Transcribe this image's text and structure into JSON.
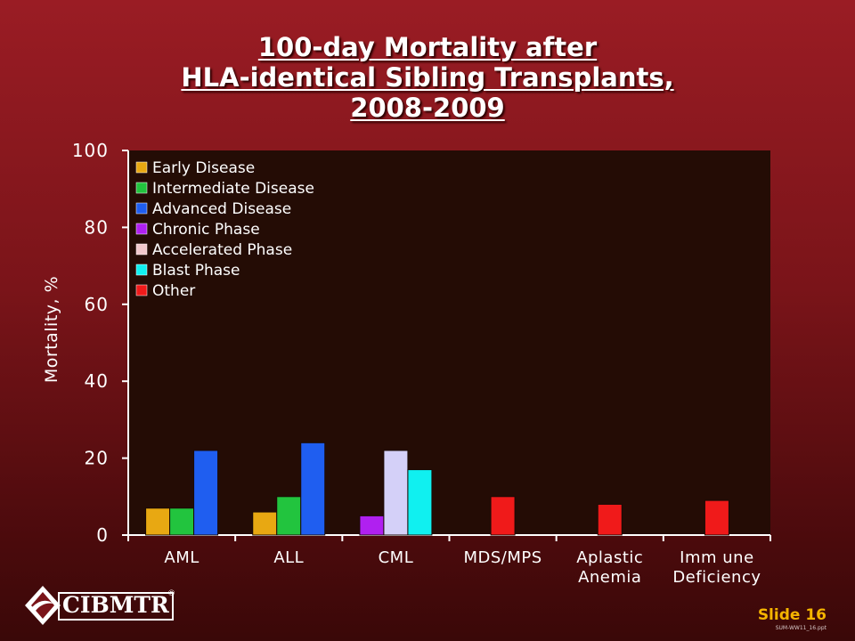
{
  "title_lines": [
    "100-day Mortality after",
    "HLA-identical Sibling Transplants,",
    "2008-2009"
  ],
  "footer": {
    "logo_text": "CIBMTR",
    "logo_mark": "®",
    "slide_label": "Slide 16",
    "code": "SUM-WW11_16.ppt"
  },
  "chart_data": {
    "type": "bar",
    "title": "100-day Mortality after HLA-identical Sibling Transplants, 2008-2009",
    "ylabel": "Mortality, %",
    "xlabel": "",
    "ylim": [
      0,
      100
    ],
    "yticks": [
      0,
      20,
      40,
      60,
      80,
      100
    ],
    "grid": false,
    "legend_position": "top-left",
    "categories": [
      {
        "label": "AML",
        "lines": [
          "AML"
        ]
      },
      {
        "label": "ALL",
        "lines": [
          "ALL"
        ]
      },
      {
        "label": "CML",
        "lines": [
          "CML"
        ]
      },
      {
        "label": "MDS/MPS",
        "lines": [
          "MDS/MPS"
        ]
      },
      {
        "label": "Aplastic Anemia",
        "lines": [
          "Aplastic",
          "Anemia"
        ]
      },
      {
        "label": "Immune Deficiency",
        "lines": [
          "Imm une",
          "Deficiency"
        ]
      }
    ],
    "series": [
      {
        "name": "Early Disease",
        "color": "#e8a812",
        "values": [
          7,
          6,
          null,
          null,
          null,
          null
        ]
      },
      {
        "name": "Intermediate Disease",
        "color": "#22c43e",
        "values": [
          7,
          10,
          null,
          null,
          null,
          null
        ]
      },
      {
        "name": "Advanced Disease",
        "color": "#1f5ef0",
        "values": [
          22,
          24,
          null,
          null,
          null,
          null
        ]
      },
      {
        "name": "Chronic Phase",
        "color": "#b020f0",
        "values": [
          null,
          null,
          5,
          null,
          null,
          null
        ]
      },
      {
        "name": "Accelerated Phase",
        "color": "#d4d0f8",
        "legend_color": "#f2c8cc",
        "values": [
          null,
          null,
          22,
          null,
          null,
          null
        ]
      },
      {
        "name": "Blast Phase",
        "color": "#10f0f0",
        "values": [
          null,
          null,
          17,
          null,
          null,
          null
        ]
      },
      {
        "name": "Other",
        "color": "#f01a1a",
        "values": [
          null,
          null,
          null,
          10,
          8,
          9
        ]
      }
    ],
    "colors": {
      "plot_background": "#240c05",
      "axis": "#ffffff",
      "text": "#ffffff"
    }
  }
}
